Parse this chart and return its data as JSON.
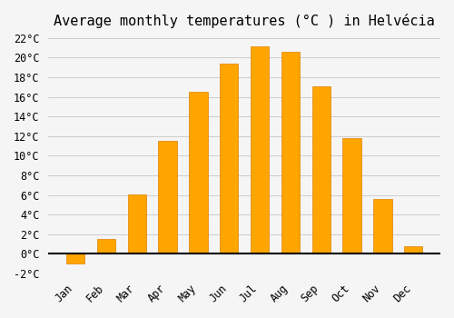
{
  "title": "Average monthly temperatures (°C ) in Helvécia",
  "months": [
    "Jan",
    "Feb",
    "Mar",
    "Apr",
    "May",
    "Jun",
    "Jul",
    "Aug",
    "Sep",
    "Oct",
    "Nov",
    "Dec"
  ],
  "values": [
    -1.0,
    1.5,
    6.1,
    11.5,
    16.5,
    19.4,
    21.2,
    20.6,
    17.1,
    11.8,
    5.6,
    0.8
  ],
  "bar_color": "#FFA500",
  "bar_edge_color": "#E08000",
  "background_color": "#F5F5F5",
  "grid_color": "#CCCCCC",
  "ylim": [
    -2,
    22
  ],
  "yticks": [
    -2,
    0,
    2,
    4,
    6,
    8,
    10,
    12,
    14,
    16,
    18,
    20,
    22
  ],
  "title_fontsize": 11,
  "tick_fontsize": 8.5
}
